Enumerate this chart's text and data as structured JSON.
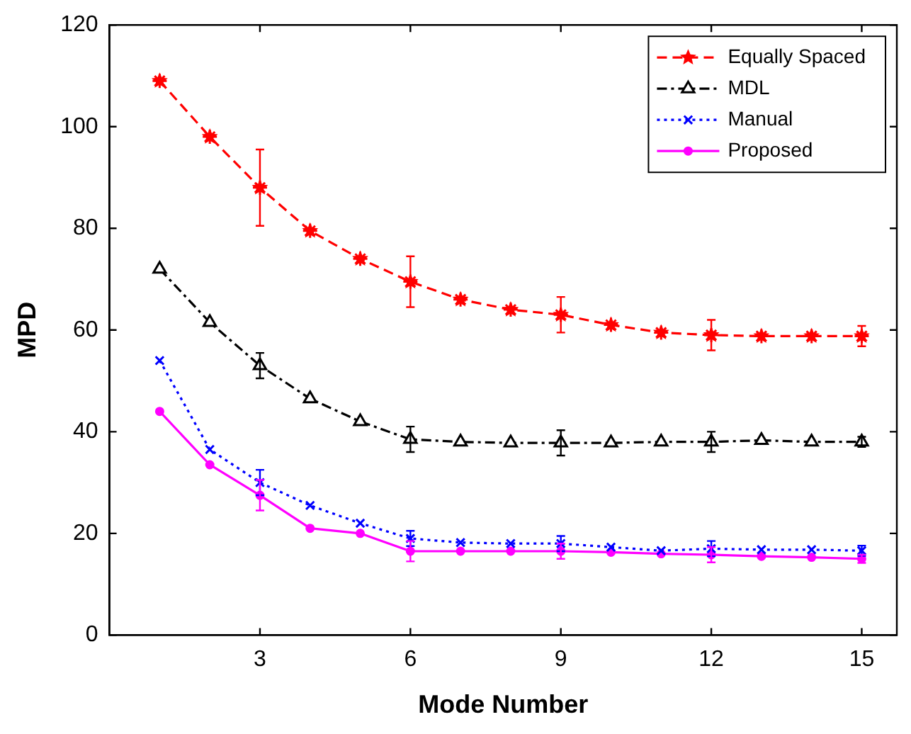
{
  "chart_data": {
    "type": "line",
    "xlabel": "Mode Number",
    "ylabel": "MPD",
    "x": [
      1,
      2,
      3,
      4,
      5,
      6,
      7,
      8,
      9,
      10,
      11,
      12,
      13,
      14,
      15
    ],
    "xlim": [
      0,
      15.7
    ],
    "xticks": [
      3,
      6,
      9,
      12,
      15
    ],
    "ylim": [
      0,
      120
    ],
    "yticks": [
      0,
      20,
      40,
      60,
      80,
      100,
      120
    ],
    "grid": false,
    "legend": "top right",
    "series": [
      {
        "name": "Equally Spaced",
        "color": "#ff0000",
        "marker": "star",
        "line_style": "dashed",
        "values": [
          109,
          98,
          88,
          79.5,
          74,
          69.5,
          66,
          64,
          63,
          61,
          59.5,
          59,
          58.8,
          58.8,
          58.8
        ],
        "errors": [
          null,
          null,
          7.5,
          null,
          null,
          5,
          null,
          null,
          3.5,
          null,
          null,
          3,
          null,
          null,
          2
        ]
      },
      {
        "name": "MDL",
        "color": "#000000",
        "marker": "triangle",
        "line_style": "dashdot",
        "values": [
          72,
          61.5,
          53,
          46.5,
          42,
          38.5,
          38,
          37.8,
          37.8,
          37.8,
          38,
          38,
          38.3,
          38,
          38
        ],
        "errors": [
          null,
          null,
          2.5,
          null,
          null,
          2.5,
          null,
          null,
          2.5,
          null,
          null,
          2,
          null,
          null,
          1
        ]
      },
      {
        "name": "Manual",
        "color": "#0000ff",
        "marker": "cross",
        "line_style": "dotted",
        "values": [
          54,
          36.5,
          30,
          25.5,
          22,
          19,
          18.2,
          18,
          18,
          17.3,
          16.6,
          17,
          16.8,
          16.8,
          16.6
        ],
        "errors": [
          null,
          null,
          2.5,
          null,
          null,
          1.5,
          null,
          null,
          1.5,
          null,
          null,
          1.5,
          null,
          null,
          1
        ]
      },
      {
        "name": "Proposed",
        "color": "#ff00ff",
        "marker": "circle",
        "line_style": "solid",
        "values": [
          44,
          33.5,
          27.5,
          21,
          20,
          16.5,
          16.5,
          16.5,
          16.5,
          16.3,
          16,
          15.8,
          15.5,
          15.3,
          15
        ],
        "errors": [
          null,
          null,
          3,
          null,
          null,
          2,
          null,
          null,
          1.5,
          null,
          null,
          1.5,
          null,
          null,
          0.8
        ]
      }
    ]
  }
}
